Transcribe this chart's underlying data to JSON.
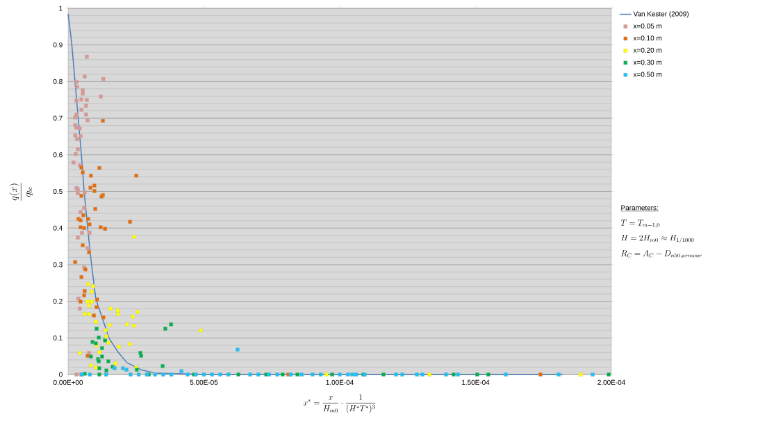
{
  "chart_data": {
    "type": "scatter",
    "xlabel": "x^* = \\frac{x}{H_{m0}} \\cdot \\frac{1}{(H^* T^*)^3}",
    "ylabel": "\\frac{q(x)}{q_{bc}}",
    "xlim": [
      0,
      0.0002
    ],
    "ylim": [
      0,
      1
    ],
    "xticks": [
      {
        "value": 0,
        "label": "0.00E+00"
      },
      {
        "value": 5e-05,
        "label": "5.00E-05"
      },
      {
        "value": 0.0001,
        "label": "1.00E-04"
      },
      {
        "value": 0.00015,
        "label": "1.50E-04"
      },
      {
        "value": 0.0002,
        "label": "2.00E-04"
      }
    ],
    "yticks": [
      0,
      0.1,
      0.2,
      0.3,
      0.4,
      0.5,
      0.6,
      0.7,
      0.8,
      0.9,
      1
    ],
    "grid": "y",
    "legend": "right",
    "marker": "square",
    "annotations": [
      "Parameters:",
      "T = T_{m-1,0}",
      "H = 2H_{m0} \\approx H_{1/1000}",
      "R_C = A_C - D_{n50,armour}"
    ],
    "series": [
      {
        "name": "Van Kester (2009)",
        "type": "line",
        "marker": "none",
        "color": "#4a7ebb",
        "x": [
          0,
          1.3e-06,
          2.6e-06,
          4.9e-06,
          5.9e-06,
          7.2e-06,
          7.7e-06,
          8.7e-06,
          1.02e-05,
          1.25e-05,
          1.51e-05,
          1.84e-05,
          2.17e-05,
          2.69e-05,
          3.2e-05,
          5e-05,
          0.0001,
          0.000182
        ],
        "values": [
          0.985,
          0.907,
          0.795,
          0.6,
          0.5,
          0.4,
          0.364,
          0.296,
          0.207,
          0.156,
          0.099,
          0.061,
          0.032,
          0.013,
          0.004,
          0,
          0,
          0
        ]
      },
      {
        "name": "x=0.05 m",
        "color": "#d99694",
        "x": [
          6.9e-06,
          6.1e-06,
          1.3e-05,
          3.1e-06,
          3.3e-06,
          5.4e-06,
          5.4e-06,
          1.2e-05,
          3.1e-06,
          4.9e-06,
          6.9e-06,
          6.6e-06,
          4.9e-06,
          3.1e-06,
          6.6e-06,
          2.6e-06,
          7.2e-06,
          2.6e-06,
          3.1e-06,
          4.3e-06,
          2.6e-06,
          4.6e-06,
          3.3e-06,
          3.6e-06,
          2.8e-06,
          2e-06,
          4.3e-06,
          3.1e-06,
          3.6e-06,
          3.6e-06,
          6.1e-06,
          5.9e-06,
          4.6e-06,
          7.9e-06,
          5.1e-06,
          3.6e-06,
          7.2e-06,
          5.9e-06,
          3.8e-06,
          4.3e-06,
          7.7e-06,
          3.1e-06
        ],
        "values": [
          0.868,
          0.814,
          0.807,
          0.799,
          0.786,
          0.776,
          0.767,
          0.759,
          0.748,
          0.751,
          0.75,
          0.734,
          0.723,
          0.71,
          0.71,
          0.702,
          0.694,
          0.681,
          0.674,
          0.672,
          0.653,
          0.651,
          0.643,
          0.615,
          0.602,
          0.579,
          0.571,
          0.509,
          0.505,
          0.495,
          0.497,
          0.455,
          0.444,
          0.387,
          0.387,
          0.374,
          0.345,
          0.292,
          0.207,
          0.18,
          0.059,
          0
        ]
      },
      {
        "name": "x=0.10 m",
        "color": "#e46c0a",
        "x": [
          1.28e-05,
          4.9e-06,
          1.15e-05,
          5.4e-06,
          2.51e-05,
          8.4e-06,
          9.7e-06,
          8.2e-06,
          9.7e-06,
          1.28e-05,
          1.23e-05,
          4.9e-06,
          1e-05,
          2.28e-05,
          3.8e-06,
          4.6e-06,
          7.4e-06,
          5.6e-06,
          7.9e-06,
          4.6e-06,
          1.2e-05,
          1.36e-05,
          5.9e-06,
          5.4e-06,
          7.7e-06,
          2.6e-06,
          6.4e-06,
          4.9e-06,
          6.1e-06,
          5.9e-06,
          1.07e-05,
          4.6e-06,
          1.05e-05,
          9.5e-06,
          1.3e-05,
          7.2e-06,
          4.9e-06,
          8.11e-05,
          0.0001739
        ],
        "values": [
          0.693,
          0.565,
          0.564,
          0.552,
          0.543,
          0.543,
          0.516,
          0.51,
          0.501,
          0.49,
          0.486,
          0.488,
          0.452,
          0.417,
          0.425,
          0.421,
          0.425,
          0.435,
          0.41,
          0.402,
          0.402,
          0.398,
          0.4,
          0.353,
          0.334,
          0.307,
          0.287,
          0.266,
          0.228,
          0.216,
          0.205,
          0.199,
          0.184,
          0.161,
          0.156,
          0.051,
          0,
          0,
          0
        ]
      },
      {
        "name": "x=0.20 m",
        "color": "#ffff00",
        "x": [
          2.43e-05,
          7.4e-06,
          9.2e-06,
          8.7e-06,
          7.2e-06,
          8.7e-06,
          7.7e-06,
          1.56e-05,
          1.82e-05,
          1.84e-05,
          6.1e-06,
          7.7e-06,
          2.56e-05,
          2.38e-05,
          1.02e-05,
          1.53e-05,
          2.17e-05,
          2.43e-05,
          1.38e-05,
          4.88e-05,
          1.41e-05,
          1.48e-05,
          2.28e-05,
          1.87e-05,
          1.05e-05,
          4.3e-06,
          1.15e-05,
          8.4e-06,
          1.74e-05,
          2.51e-05,
          1.02e-05,
          9.51e-05,
          0.000133,
          0.0001887
        ],
        "values": [
          0.376,
          0.247,
          0.241,
          0.226,
          0.199,
          0.199,
          0.188,
          0.18,
          0.175,
          0.165,
          0.165,
          0.165,
          0.171,
          0.158,
          0.144,
          0.135,
          0.137,
          0.133,
          0.121,
          0.12,
          0.104,
          0.087,
          0.083,
          0.076,
          0.08,
          0.059,
          0.061,
          0.025,
          0.03,
          0.019,
          0.019,
          0,
          0,
          0
        ]
      },
      {
        "name": "x=0.30 m",
        "color": "#00b050",
        "x": [
          1.05e-05,
          3.79e-05,
          3.58e-05,
          1.13e-05,
          9e-06,
          1.02e-05,
          1.36e-05,
          1.25e-05,
          8.4e-06,
          1.25e-05,
          1.1e-05,
          1.13e-05,
          2.66e-05,
          2.69e-05,
          1.48e-05,
          3.48e-05,
          1.64e-05,
          2.53e-05,
          1.41e-05,
          1.15e-05,
          6.1e-06,
          1.15e-05,
          2.97e-05,
          4.63e-05,
          6.27e-05,
          7.29e-05,
          7.9e-05,
          8.44e-05,
          9.72e-05,
          0.0001087,
          0.0001161,
          0.0001419,
          0.0001506,
          0.0001547,
          0.000199
        ],
        "values": [
          0.125,
          0.137,
          0.125,
          0.101,
          0.089,
          0.085,
          0.093,
          0.072,
          0.049,
          0.049,
          0.042,
          0.036,
          0.059,
          0.051,
          0.036,
          0.023,
          0.021,
          0.013,
          0.011,
          0.017,
          0.002,
          0,
          0,
          0,
          0,
          0,
          0,
          0,
          0,
          0,
          0,
          0,
          0,
          0,
          0
        ]
      },
      {
        "name": "x=0.50 m",
        "color": "#1fc1f2",
        "x": [
          6.24e-05,
          1.71e-05,
          2.02e-05,
          2.15e-05,
          4.17e-05,
          5e-06,
          8e-06,
          1.4e-05,
          2.3e-05,
          2.6e-05,
          2.9e-05,
          3.2e-05,
          3.5e-05,
          3.8e-05,
          4.4e-05,
          4.7e-05,
          5e-05,
          5.3e-05,
          5.6e-05,
          5.9e-05,
          6.7e-05,
          7e-05,
          7.4e-05,
          7.7e-05,
          8.2e-05,
          8.6e-05,
          9e-05,
          9.3e-05,
          0.0001,
          0.000103,
          0.000106,
          0.0001046,
          0.0001092,
          0.0001207,
          0.000123,
          0.0001284,
          0.0001304,
          0.0001391,
          0.0001435,
          0.0001611,
          0.0001806,
          0.0001931
        ],
        "values": [
          0.068,
          0.017,
          0.017,
          0.013,
          0.009,
          0,
          0,
          0,
          0,
          0,
          0,
          0,
          0,
          0,
          0,
          0,
          0,
          0,
          0,
          0,
          0,
          0,
          0,
          0,
          0,
          0,
          0,
          0,
          0,
          0,
          0,
          0,
          0,
          0,
          0,
          0,
          0,
          0,
          0,
          0,
          0,
          0
        ]
      }
    ]
  }
}
